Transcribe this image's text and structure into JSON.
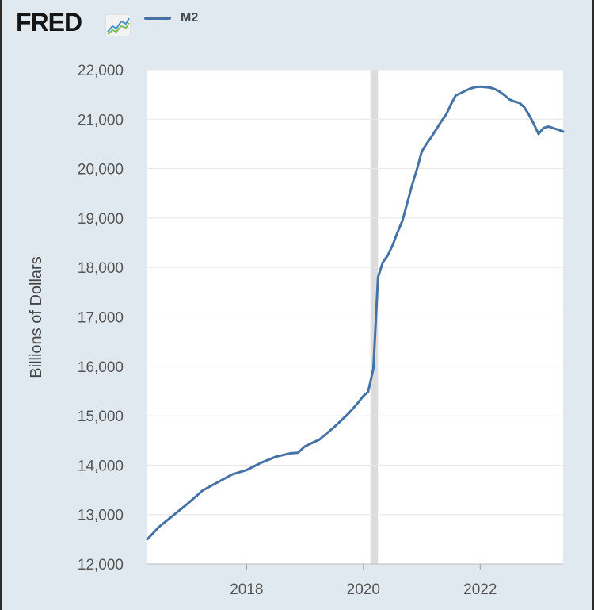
{
  "header": {
    "logo_text": "FRED",
    "logo_icon": "line-chart-icon",
    "legend_label": "M2"
  },
  "colors": {
    "series": "#4572a7",
    "recession": "#dcdcdc",
    "grid": "#e6e6e6",
    "background": "#e1e9f0"
  },
  "chart_data": {
    "type": "line",
    "title": "",
    "xlabel": "",
    "ylabel": "Billions of Dollars",
    "xlim": [
      2016.3,
      2023.42
    ],
    "ylim": [
      12000,
      22000
    ],
    "y_ticks": [
      12000,
      13000,
      14000,
      15000,
      16000,
      17000,
      18000,
      19000,
      20000,
      21000,
      22000
    ],
    "y_tick_labels": [
      "12,000",
      "13,000",
      "14,000",
      "15,000",
      "16,000",
      "17,000",
      "18,000",
      "19,000",
      "20,000",
      "21,000",
      "22,000"
    ],
    "x_ticks": [
      2018,
      2020,
      2022
    ],
    "x_tick_labels": [
      "2018",
      "2020",
      "2022"
    ],
    "recession": {
      "start": 2020.12,
      "end": 2020.25
    },
    "series": [
      {
        "name": "M2",
        "x": [
          2016.3,
          2016.5,
          2016.75,
          2017.0,
          2017.25,
          2017.5,
          2017.75,
          2018.0,
          2018.25,
          2018.5,
          2018.75,
          2018.88,
          2019.0,
          2019.25,
          2019.5,
          2019.75,
          2019.9,
          2020.0,
          2020.08,
          2020.17,
          2020.25,
          2020.33,
          2020.42,
          2020.5,
          2020.58,
          2020.67,
          2020.75,
          2020.83,
          2020.92,
          2021.0,
          2021.08,
          2021.17,
          2021.25,
          2021.33,
          2021.42,
          2021.5,
          2021.58,
          2021.67,
          2021.75,
          2021.83,
          2021.92,
          2022.0,
          2022.08,
          2022.17,
          2022.25,
          2022.33,
          2022.42,
          2022.5,
          2022.58,
          2022.67,
          2022.75,
          2022.83,
          2022.92,
          2023.0,
          2023.08,
          2023.17,
          2023.25,
          2023.33,
          2023.42
        ],
        "values": [
          12500,
          12750,
          12990,
          13230,
          13490,
          13650,
          13810,
          13900,
          14050,
          14170,
          14240,
          14250,
          14380,
          14520,
          14770,
          15050,
          15250,
          15400,
          15480,
          15950,
          17800,
          18100,
          18250,
          18450,
          18700,
          18950,
          19300,
          19650,
          20000,
          20350,
          20500,
          20650,
          20800,
          20950,
          21100,
          21300,
          21480,
          21530,
          21580,
          21620,
          21650,
          21660,
          21650,
          21640,
          21610,
          21560,
          21480,
          21400,
          21360,
          21330,
          21250,
          21100,
          20900,
          20700,
          20820,
          20850,
          20820,
          20790,
          20750
        ]
      }
    ]
  }
}
